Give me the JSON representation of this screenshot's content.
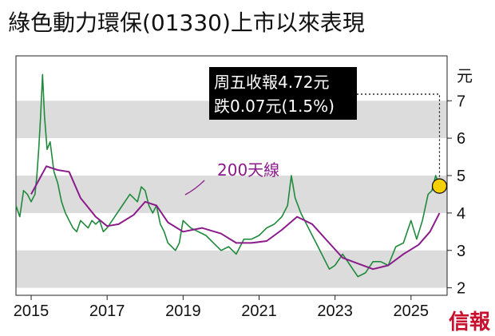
{
  "chart_data": {
    "type": "line",
    "title": "綠色動力環保(01330)上市以來表現",
    "unit": "元",
    "brand": "信報",
    "ylim": [
      1.8,
      8.2
    ],
    "yticks": [
      2,
      3,
      4,
      5,
      6,
      7
    ],
    "xlim": [
      2014.6,
      2025.95
    ],
    "xticks": [
      "2015",
      "2017",
      "2019",
      "2021",
      "2023",
      "2025"
    ],
    "grid": "alternating horizontal bands",
    "annotation": {
      "line1": "周五收報4.72元",
      "line2": "跌0.07元(1.5%)",
      "x": 2025.75,
      "y": 4.72
    },
    "ma_label": "200天線",
    "colors": {
      "price": "#1f8a3c",
      "ma": "#8b1a8b",
      "band": "#dcdcdc",
      "annotation_bg": "#000000",
      "marker": "#f5d000",
      "brand": "#c8102e"
    },
    "series": [
      {
        "name": "",
        "role": "price",
        "x": [
          2014.6,
          2014.7,
          2014.8,
          2014.9,
          2015.0,
          2015.1,
          2015.15,
          2015.2,
          2015.25,
          2015.3,
          2015.35,
          2015.42,
          2015.5,
          2015.6,
          2015.7,
          2015.8,
          2015.9,
          2016.0,
          2016.1,
          2016.2,
          2016.3,
          2016.4,
          2016.5,
          2016.6,
          2016.7,
          2016.8,
          2016.9,
          2017.0,
          2017.2,
          2017.4,
          2017.6,
          2017.8,
          2017.9,
          2018.0,
          2018.1,
          2018.2,
          2018.3,
          2018.4,
          2018.5,
          2018.6,
          2018.7,
          2018.8,
          2018.9,
          2019.0,
          2019.2,
          2019.4,
          2019.6,
          2019.8,
          2020.0,
          2020.2,
          2020.4,
          2020.6,
          2020.8,
          2021.0,
          2021.2,
          2021.4,
          2021.6,
          2021.75,
          2021.85,
          2021.95,
          2022.1,
          2022.3,
          2022.5,
          2022.7,
          2022.85,
          2023.0,
          2023.2,
          2023.4,
          2023.6,
          2023.8,
          2024.0,
          2024.2,
          2024.4,
          2024.6,
          2024.8,
          2025.0,
          2025.15,
          2025.3,
          2025.45,
          2025.55,
          2025.65,
          2025.75
        ],
        "values": [
          4.2,
          3.9,
          4.6,
          4.5,
          4.3,
          4.5,
          5.0,
          5.7,
          6.6,
          7.7,
          6.6,
          5.7,
          5.9,
          5.1,
          4.8,
          4.3,
          4.0,
          3.8,
          3.6,
          3.5,
          3.8,
          3.7,
          3.6,
          3.8,
          3.7,
          3.8,
          3.5,
          3.6,
          3.9,
          4.2,
          4.5,
          4.3,
          4.7,
          4.6,
          4.2,
          4.0,
          4.2,
          3.7,
          3.5,
          3.2,
          3.1,
          3.0,
          3.2,
          3.8,
          3.6,
          3.5,
          3.4,
          3.2,
          3.0,
          3.1,
          2.9,
          3.3,
          3.3,
          3.4,
          3.6,
          3.7,
          3.9,
          4.2,
          5.0,
          4.4,
          4.0,
          3.6,
          3.2,
          2.8,
          2.5,
          2.6,
          2.9,
          2.6,
          2.3,
          2.4,
          2.7,
          2.7,
          2.6,
          3.1,
          3.2,
          3.8,
          3.3,
          3.8,
          4.5,
          4.6,
          5.0,
          4.72
        ]
      },
      {
        "name": "200天線",
        "role": "ma",
        "x": [
          2015.0,
          2015.4,
          2015.7,
          2016.0,
          2016.3,
          2016.7,
          2017.0,
          2017.3,
          2017.7,
          2018.0,
          2018.3,
          2018.6,
          2019.0,
          2019.5,
          2020.0,
          2020.4,
          2020.8,
          2021.2,
          2021.6,
          2022.0,
          2022.4,
          2022.8,
          2023.2,
          2023.6,
          2024.0,
          2024.4,
          2024.8,
          2025.2,
          2025.5,
          2025.75
        ],
        "values": [
          4.5,
          5.25,
          5.15,
          5.1,
          4.4,
          3.9,
          3.65,
          3.7,
          3.95,
          4.3,
          4.2,
          3.75,
          3.5,
          3.6,
          3.45,
          3.2,
          3.2,
          3.25,
          3.55,
          3.9,
          3.7,
          3.25,
          2.8,
          2.65,
          2.5,
          2.6,
          2.9,
          3.15,
          3.5,
          4.0
        ]
      }
    ]
  }
}
